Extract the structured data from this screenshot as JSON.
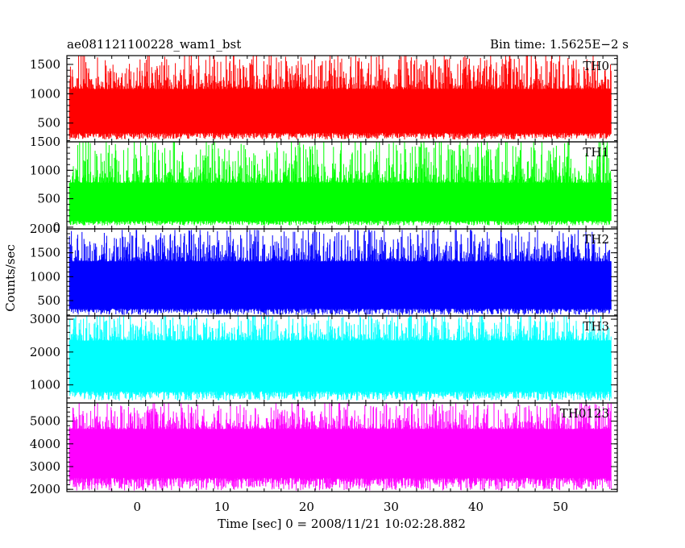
{
  "chart_data": {
    "type": "line",
    "title": "ae081121100228_wam1_bst",
    "subtitle": "Bin time: 1.5625E−2 s",
    "xlabel": "Time [sec] 0 = 2008/11/21 10:02:28.882",
    "ylabel": "Counts/sec",
    "xlim": [
      -8.3,
      56.7
    ],
    "x_range_data": [
      -8.0,
      56.0
    ],
    "x_ticks": [
      0,
      10,
      20,
      30,
      40,
      50
    ],
    "bin_time": 0.015625,
    "panels": [
      {
        "name": "TH0",
        "color": "#ff0000",
        "ylim": [
          180,
          1650
        ],
        "y_ticks": [
          500,
          1000,
          1500
        ],
        "band": {
          "low": 220,
          "core_low": 330,
          "core_high": 1080,
          "high": 1650
        }
      },
      {
        "name": "TH1",
        "color": "#00ff00",
        "ylim": [
          -30,
          1500
        ],
        "y_ticks": [
          0,
          500,
          1000,
          1500
        ],
        "band": {
          "low": 30,
          "core_low": 110,
          "core_high": 780,
          "high": 1500
        }
      },
      {
        "name": "TH2",
        "color": "#0000ff",
        "ylim": [
          180,
          2000
        ],
        "y_ticks": [
          500,
          1000,
          1500,
          2000
        ],
        "band": {
          "low": 200,
          "core_low": 330,
          "core_high": 1320,
          "high": 1980
        }
      },
      {
        "name": "TH3",
        "color": "#00ffff",
        "ylim": [
          450,
          3100
        ],
        "y_ticks": [
          1000,
          2000,
          3000
        ],
        "band": {
          "low": 520,
          "core_low": 800,
          "core_high": 2350,
          "high": 3100
        }
      },
      {
        "name": "TH0123",
        "color": "#ff00ff",
        "ylim": [
          1900,
          5800
        ],
        "y_ticks": [
          2000,
          3000,
          4000,
          5000
        ],
        "band": {
          "low": 1950,
          "core_low": 2500,
          "core_high": 4650,
          "high": 5800
        }
      }
    ]
  }
}
